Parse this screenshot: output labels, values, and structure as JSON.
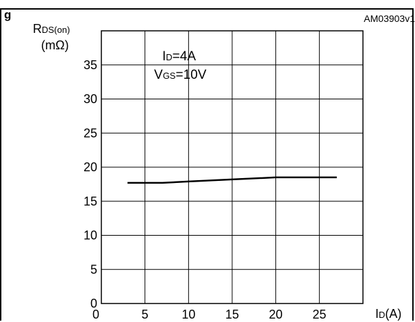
{
  "figure": {
    "header_partial": "g",
    "corner_code": "AM03903v1"
  },
  "chart_data": {
    "type": "line",
    "title": "",
    "ylabel": {
      "main": "R",
      "sub": "DS(on)",
      "unit": "(mΩ)"
    },
    "xlabel": {
      "main": "I",
      "sub": "D",
      "unit": "(A)"
    },
    "xlim": [
      0,
      30
    ],
    "ylim": [
      0,
      40
    ],
    "xticks": [
      0,
      5,
      10,
      15,
      20,
      25
    ],
    "yticks": [
      0,
      5,
      10,
      15,
      20,
      25,
      30,
      35
    ],
    "grid": true,
    "annotations": [
      {
        "main": "I",
        "sub": "D",
        "rest": "=4A"
      },
      {
        "main": "V",
        "sub": "GS",
        "rest": "=10V"
      }
    ],
    "series": [
      {
        "x": [
          3,
          7,
          10,
          15,
          20,
          24,
          27
        ],
        "y": [
          17.7,
          17.7,
          17.9,
          18.2,
          18.5,
          18.5,
          18.5
        ],
        "color": "#000000"
      }
    ]
  }
}
